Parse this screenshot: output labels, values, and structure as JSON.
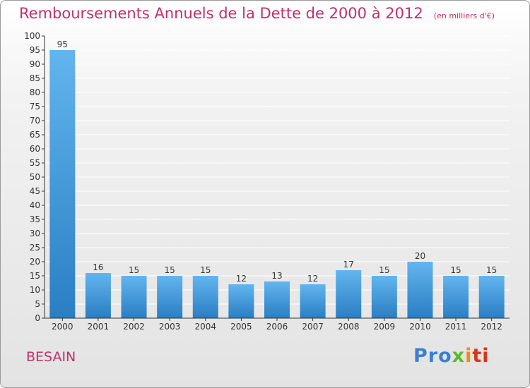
{
  "header": {
    "title": "Remboursements Annuels de la Dette de 2000 à 2012",
    "unit": "(en milliers d'€)"
  },
  "commune": "BESAIN",
  "logo": {
    "text": "Proxiti"
  },
  "colors": {
    "title": "#c0306a",
    "bar_top": "#62b5ee",
    "bar_bottom": "#2a7ec3",
    "grid": "#ffffff",
    "axis": "#333333"
  },
  "chart_data": {
    "type": "bar",
    "title": "Remboursements Annuels de la Dette de 2000 à 2012",
    "subtitle": "(en milliers d'€)",
    "xlabel": "",
    "ylabel": "",
    "categories": [
      "2000",
      "2001",
      "2002",
      "2003",
      "2004",
      "2005",
      "2006",
      "2007",
      "2008",
      "2009",
      "2010",
      "2011",
      "2012"
    ],
    "values": [
      95,
      16,
      15,
      15,
      15,
      12,
      13,
      12,
      17,
      15,
      20,
      15,
      15
    ],
    "ylim": [
      0,
      100
    ],
    "yticks": [
      0,
      5,
      10,
      15,
      20,
      25,
      30,
      35,
      40,
      45,
      50,
      55,
      60,
      65,
      70,
      75,
      80,
      85,
      90,
      95,
      100
    ],
    "grid": true,
    "legend": "none"
  }
}
